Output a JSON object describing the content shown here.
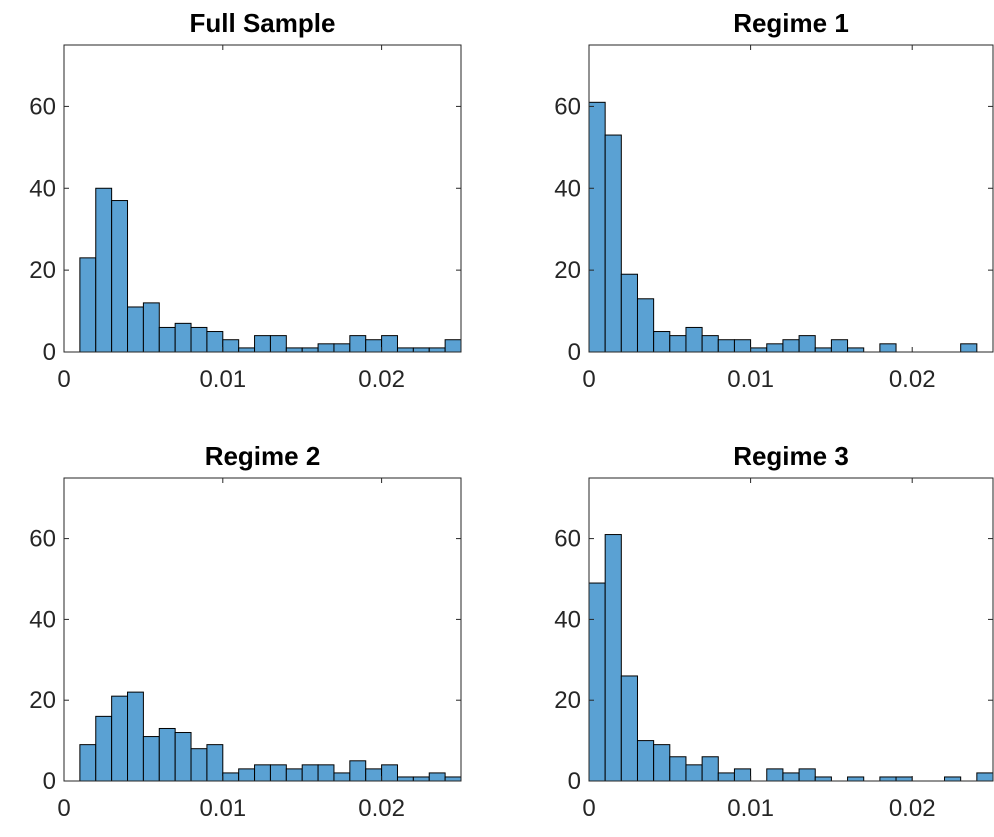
{
  "chart_data": [
    {
      "type": "bar",
      "title": "Full Sample",
      "bin_edges_start": 0.001,
      "bin_width": 0.001,
      "values": [
        23,
        40,
        37,
        11,
        12,
        6,
        7,
        6,
        5,
        3,
        1,
        4,
        4,
        1,
        1,
        2,
        2,
        4,
        3,
        4,
        1,
        1,
        1,
        3
      ],
      "xlim": [
        0,
        0.025
      ],
      "ylim": [
        0,
        75
      ],
      "xticks": [
        0,
        0.01,
        0.02
      ],
      "xtick_labels": [
        "0",
        "0.01",
        "0.02"
      ],
      "yticks": [
        0,
        20,
        40,
        60
      ],
      "ytick_labels": [
        "0",
        "20",
        "40",
        "60"
      ],
      "xlabel": "",
      "ylabel": "",
      "bar_color": "#5aa1d3"
    },
    {
      "type": "bar",
      "title": "Regime 1",
      "bin_edges_start": 0,
      "bin_width": 0.001,
      "values": [
        61,
        53,
        19,
        13,
        5,
        4,
        6,
        4,
        3,
        3,
        1,
        2,
        3,
        4,
        1,
        3,
        1,
        0,
        2,
        0,
        0,
        0,
        0,
        2,
        0
      ],
      "xlim": [
        0,
        0.025
      ],
      "ylim": [
        0,
        75
      ],
      "xticks": [
        0,
        0.01,
        0.02
      ],
      "xtick_labels": [
        "0",
        "0.01",
        "0.02"
      ],
      "yticks": [
        0,
        20,
        40,
        60
      ],
      "ytick_labels": [
        "0",
        "20",
        "40",
        "60"
      ],
      "xlabel": "",
      "ylabel": "",
      "bar_color": "#5aa1d3"
    },
    {
      "type": "bar",
      "title": "Regime 2",
      "bin_edges_start": 0.001,
      "bin_width": 0.001,
      "values": [
        9,
        16,
        21,
        22,
        11,
        13,
        12,
        8,
        9,
        2,
        3,
        4,
        4,
        3,
        4,
        4,
        2,
        5,
        3,
        4,
        1,
        1,
        2,
        1,
        4
      ],
      "xlim": [
        0,
        0.025
      ],
      "ylim": [
        0,
        75
      ],
      "xticks": [
        0,
        0.01,
        0.02
      ],
      "xtick_labels": [
        "0",
        "0.01",
        "0.02"
      ],
      "yticks": [
        0,
        20,
        40,
        60
      ],
      "ytick_labels": [
        "0",
        "20",
        "40",
        "60"
      ],
      "xlabel": "",
      "ylabel": "",
      "bar_color": "#5aa1d3"
    },
    {
      "type": "bar",
      "title": "Regime 3",
      "bin_edges_start": 0,
      "bin_width": 0.001,
      "values": [
        49,
        61,
        26,
        10,
        9,
        6,
        4,
        6,
        2,
        3,
        0,
        3,
        2,
        3,
        1,
        0,
        1,
        0,
        1,
        1,
        0,
        0,
        1,
        0,
        2
      ],
      "xlim": [
        0,
        0.025
      ],
      "ylim": [
        0,
        75
      ],
      "xticks": [
        0,
        0.01,
        0.02
      ],
      "xtick_labels": [
        "0",
        "0.01",
        "0.02"
      ],
      "yticks": [
        0,
        20,
        40,
        60
      ],
      "ytick_labels": [
        "0",
        "20",
        "40",
        "60"
      ],
      "xlabel": "",
      "ylabel": "",
      "bar_color": "#5aa1d3"
    }
  ]
}
